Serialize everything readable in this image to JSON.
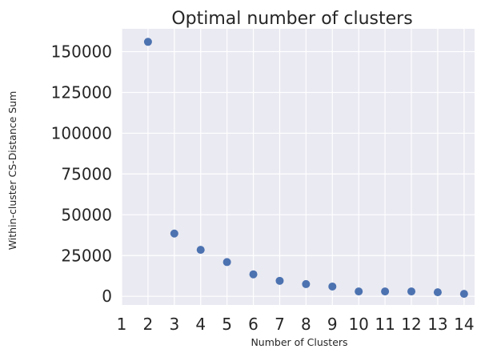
{
  "chart_data": {
    "type": "scatter",
    "title": "Optimal number of clusters",
    "xlabel": "Number of Clusters",
    "ylabel": "Within-cluster CS-Distance Sum",
    "x": [
      2,
      3,
      4,
      5,
      6,
      7,
      8,
      9,
      10,
      11,
      12,
      13,
      14
    ],
    "y": [
      156000,
      38500,
      28500,
      21000,
      13500,
      9500,
      7500,
      6000,
      3000,
      3000,
      3000,
      2500,
      1500
    ],
    "xlim": [
      1,
      14.4
    ],
    "ylim": [
      -5300,
      164000
    ],
    "xticks": [
      "1",
      "2",
      "3",
      "4",
      "5",
      "6",
      "7",
      "8",
      "9",
      "10",
      "11",
      "12",
      "13",
      "14"
    ],
    "yticks": [
      "0",
      "25000",
      "50000",
      "75000",
      "100000",
      "125000",
      "150000"
    ],
    "grid": true,
    "colors": {
      "background": "#eaeaf2",
      "grid": "#ffffff",
      "marker": "#4c72b0"
    }
  }
}
